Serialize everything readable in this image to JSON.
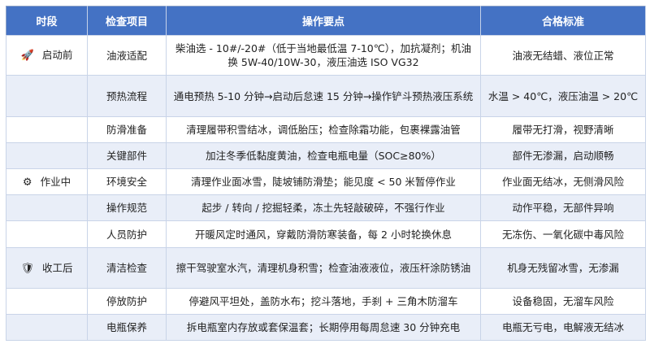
{
  "headers": [
    "时段",
    "检查项目",
    "操作要点",
    "合格标准"
  ],
  "rows": [
    {
      "phase": "启动前",
      "icon": "rocket-icon",
      "glyph": "🚀",
      "item": "油液适配",
      "op": "柴油选 - 10#/-20#（低于当地最低温 7-10℃），加抗凝剂；机油换 5W-40/10W-30，液压油选 ISO VG32",
      "std": "油液无结蜡、液位正常"
    },
    {
      "phase": "",
      "item": "预热流程",
      "op": "通电预热 5-10 分钟→启动后怠速 15 分钟→操作铲斗预热液压系统",
      "std": "水温 > 40℃，液压油温 > 20℃"
    },
    {
      "phase": "",
      "item": "防滑准备",
      "op": "清理履带积雪结冰，调低胎压；检查除霜功能，包裹裸露油管",
      "std": "履带无打滑，视野清晰"
    },
    {
      "phase": "",
      "item": "关键部件",
      "op": "加注冬季低黏度黄油，检查电瓶电量（SOC≥80%）",
      "std": "部件无渗漏，启动顺畅"
    },
    {
      "phase": "作业中",
      "icon": "gear-icon",
      "glyph": "⚙",
      "item": "环境安全",
      "op": "清理作业面冰雪，陡坡铺防滑垫；能见度 < 50 米暂停作业",
      "std": "作业面无结冰，无侧滑风险"
    },
    {
      "phase": "",
      "item": "操作规范",
      "op": "起步 / 转向 / 挖掘轻柔，冻土先轻敲破碎，不强行作业",
      "std": "动作平稳，无部件异响"
    },
    {
      "phase": "",
      "item": "人员防护",
      "op": "开暖风定时通风，穿戴防滑防寒装备，每 2 小时轮换休息",
      "std": "无冻伤、一氧化碳中毒风险"
    },
    {
      "phase": "收工后",
      "icon": "shield-icon",
      "glyph": "🛡",
      "item": "清洁检查",
      "op": "擦干驾驶室水汽，清理机身积雪；检查油液液位，液压杆涂防锈油",
      "std": "机身无残留冰雪，无渗漏"
    },
    {
      "phase": "",
      "item": "停放防护",
      "op": "停避风平坦处，盖防水布；挖斗落地，手刹 + 三角木防溜车",
      "std": "设备稳固，无溜车风险"
    },
    {
      "phase": "",
      "item": "电瓶保养",
      "op": "拆电瓶室内存放或套保温套；长期停用每周怠速 30 分钟充电",
      "std": "电瓶无亏电，电解液无结冰"
    }
  ],
  "colors": {
    "header": "#4472c4",
    "alt_row": "#e9eef8"
  }
}
